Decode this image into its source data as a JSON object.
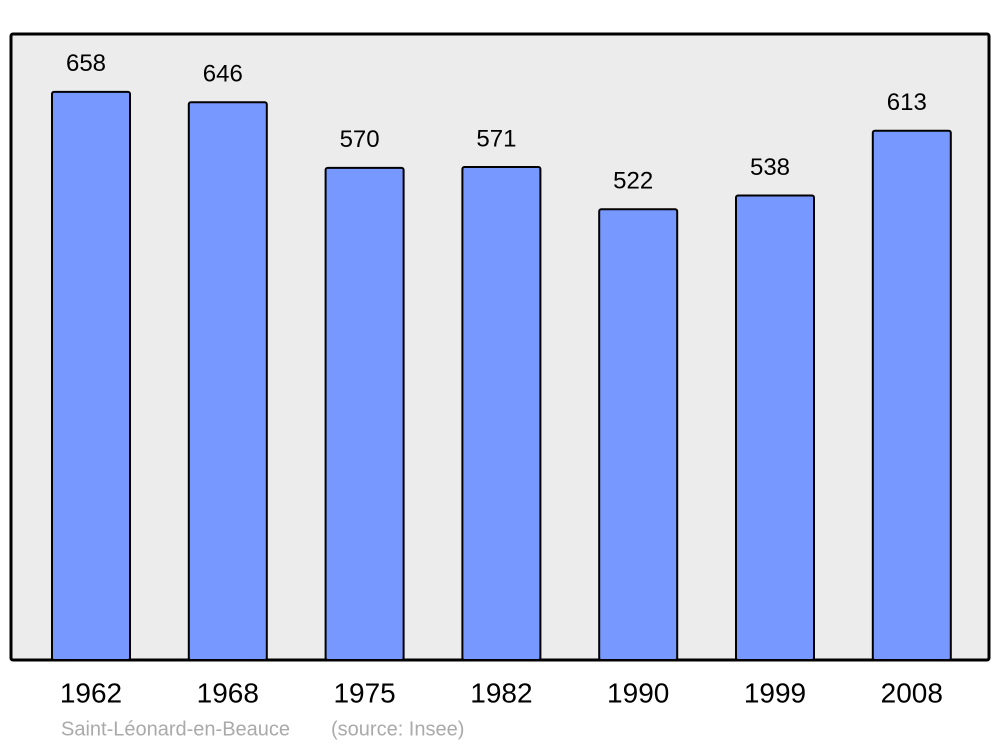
{
  "chart_data": {
    "type": "bar",
    "categories": [
      "1962",
      "1968",
      "1975",
      "1982",
      "1990",
      "1999",
      "2008"
    ],
    "values": [
      658,
      646,
      570,
      571,
      522,
      538,
      613
    ],
    "color": "#7799ff",
    "ylim": [
      0,
      725
    ],
    "caption": "Saint-Léonard-en-Beauce",
    "source": "(source: Insee)"
  }
}
